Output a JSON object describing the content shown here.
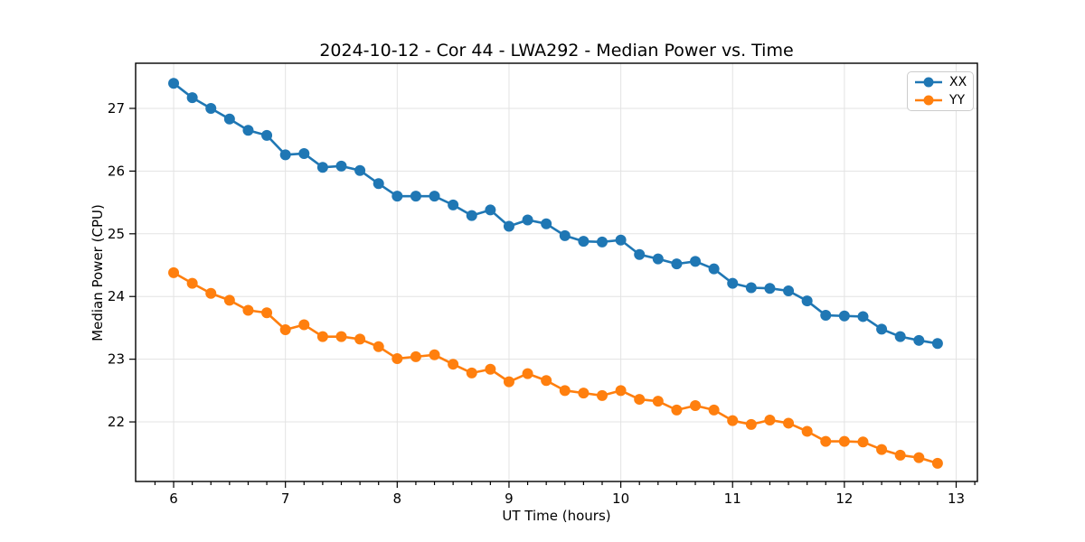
{
  "chart_data": {
    "type": "line",
    "title": "2024-10-12 - Cor 44 - LWA292 - Median Power vs. Time",
    "xlabel": "UT Time (hours)",
    "ylabel": "Median Power (CPU)",
    "xlim": [
      5.66,
      13.19
    ],
    "ylim": [
      21.05,
      27.72
    ],
    "xticks": [
      6,
      7,
      8,
      9,
      10,
      11,
      12,
      13
    ],
    "yticks": [
      22,
      23,
      24,
      25,
      26,
      27
    ],
    "minor_xtick_step": 0.166667,
    "grid": true,
    "legend_position": "upper right",
    "x": [
      6.0,
      6.1667,
      6.3333,
      6.5,
      6.6667,
      6.8333,
      7.0,
      7.1667,
      7.3333,
      7.5,
      7.6667,
      7.8333,
      8.0,
      8.1667,
      8.3333,
      8.5,
      8.6667,
      8.8333,
      9.0,
      9.1667,
      9.3333,
      9.5,
      9.6667,
      9.8333,
      10.0,
      10.1667,
      10.3333,
      10.5,
      10.6667,
      10.8333,
      11.0,
      11.1667,
      11.3333,
      11.5,
      11.6667,
      11.8333,
      12.0,
      12.1667,
      12.3333,
      12.5,
      12.6667,
      12.8333
    ],
    "series": [
      {
        "name": "XX",
        "color": "#1f77b4",
        "values": [
          27.4,
          27.17,
          27.0,
          26.83,
          26.65,
          26.57,
          26.26,
          26.28,
          26.06,
          26.08,
          26.01,
          25.8,
          25.6,
          25.6,
          25.6,
          25.46,
          25.29,
          25.38,
          25.12,
          25.22,
          25.16,
          24.97,
          24.88,
          24.87,
          24.9,
          24.67,
          24.6,
          24.52,
          24.56,
          24.44,
          24.21,
          24.14,
          24.13,
          24.09,
          23.93,
          23.7,
          23.69,
          23.68,
          23.48,
          23.36,
          23.3,
          23.25
        ]
      },
      {
        "name": "YY",
        "color": "#ff7f0e",
        "values": [
          24.38,
          24.21,
          24.05,
          23.94,
          23.78,
          23.74,
          23.47,
          23.55,
          23.36,
          23.36,
          23.32,
          23.2,
          23.01,
          23.04,
          23.07,
          22.92,
          22.78,
          22.84,
          22.64,
          22.77,
          22.66,
          22.5,
          22.46,
          22.42,
          22.5,
          22.36,
          22.33,
          22.19,
          22.26,
          22.19,
          22.02,
          21.96,
          22.03,
          21.98,
          21.85,
          21.69,
          21.69,
          21.68,
          21.56,
          21.47,
          21.43,
          21.34
        ]
      }
    ],
    "style": {
      "grid_color": "#e3e3e3",
      "spine_color": "#000000",
      "tick_label_color": "#000000",
      "marker_radius": 6,
      "line_width": 2.6
    }
  }
}
